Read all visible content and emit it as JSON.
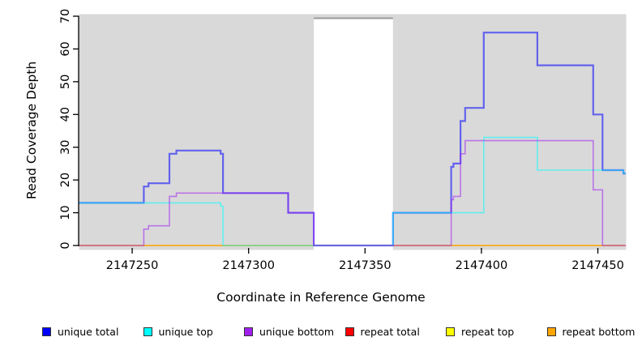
{
  "colors": {
    "panel_background": "#d9d9d9",
    "masked_band_fill": "#ffffff",
    "masked_band_border": "#999999",
    "axis": "#000000",
    "line_alpha": 0.55
  },
  "axes": {
    "y_label": "Read Coverage Depth",
    "x_label": "Coordinate in Reference Genome",
    "y_ticks": [
      0,
      10,
      20,
      30,
      40,
      50,
      60,
      70
    ],
    "x_ticks": [
      2147250,
      2147300,
      2147350,
      2147400,
      2147450
    ]
  },
  "legend": [
    {
      "label": "unique total",
      "color": "#0000ff"
    },
    {
      "label": "unique top",
      "color": "#00ffff"
    },
    {
      "label": "unique bottom",
      "color": "#a020f0"
    },
    {
      "label": "repeat total",
      "color": "#ff0000"
    },
    {
      "label": "repeat top",
      "color": "#ffff00"
    },
    {
      "label": "repeat bottom",
      "color": "#ffa500"
    }
  ],
  "chart_data": {
    "type": "line",
    "subtype": "step",
    "title": "",
    "xlabel": "Coordinate in Reference Genome",
    "ylabel": "Read Coverage Depth",
    "xlim": [
      2147227,
      2147462
    ],
    "ylim": [
      0,
      70
    ],
    "grid": false,
    "legend_position": "bottom",
    "masked_region": {
      "x_start": 2147328,
      "x_end": 2147362
    },
    "series": [
      {
        "name": "repeat total",
        "color": "#ff0000",
        "width": 1.6,
        "steps": [
          [
            2147227,
            0
          ],
          [
            2147462,
            0
          ]
        ]
      },
      {
        "name": "repeat top",
        "color": "#ffff00",
        "width": 1.6,
        "steps": [
          [
            2147227,
            0
          ],
          [
            2147462,
            0
          ]
        ]
      },
      {
        "name": "repeat bottom",
        "color": "#ffa500",
        "width": 1.6,
        "steps": [
          [
            2147227,
            0
          ],
          [
            2147462,
            0
          ]
        ]
      },
      {
        "name": "unique total",
        "color": "#0000ff",
        "width": 2.2,
        "steps": [
          [
            2147227,
            13
          ],
          [
            2147255,
            18
          ],
          [
            2147257,
            19
          ],
          [
            2147266,
            28
          ],
          [
            2147269,
            29
          ],
          [
            2147288,
            28
          ],
          [
            2147289,
            16
          ],
          [
            2147317,
            10
          ],
          [
            2147328,
            0
          ],
          [
            2147362,
            10
          ],
          [
            2147387,
            24
          ],
          [
            2147388,
            25
          ],
          [
            2147391,
            38
          ],
          [
            2147393,
            42
          ],
          [
            2147401,
            65
          ],
          [
            2147424,
            55
          ],
          [
            2147448,
            40
          ],
          [
            2147452,
            23
          ],
          [
            2147461,
            22
          ],
          [
            2147462,
            22
          ]
        ]
      },
      {
        "name": "unique top",
        "color": "#00ffff",
        "width": 1.6,
        "steps": [
          [
            2147227,
            13
          ],
          [
            2147288,
            12
          ],
          [
            2147289,
            0
          ],
          [
            2147362,
            10
          ],
          [
            2147401,
            33
          ],
          [
            2147424,
            23
          ],
          [
            2147461,
            22
          ],
          [
            2147462,
            22
          ]
        ]
      },
      {
        "name": "unique bottom",
        "color": "#a020f0",
        "width": 1.6,
        "steps": [
          [
            2147227,
            0
          ],
          [
            2147255,
            5
          ],
          [
            2147257,
            6
          ],
          [
            2147266,
            15
          ],
          [
            2147269,
            16
          ],
          [
            2147317,
            10
          ],
          [
            2147328,
            0
          ],
          [
            2147387,
            14
          ],
          [
            2147388,
            15
          ],
          [
            2147391,
            28
          ],
          [
            2147393,
            32
          ],
          [
            2147448,
            17
          ],
          [
            2147452,
            0
          ],
          [
            2147462,
            0
          ]
        ]
      }
    ]
  }
}
